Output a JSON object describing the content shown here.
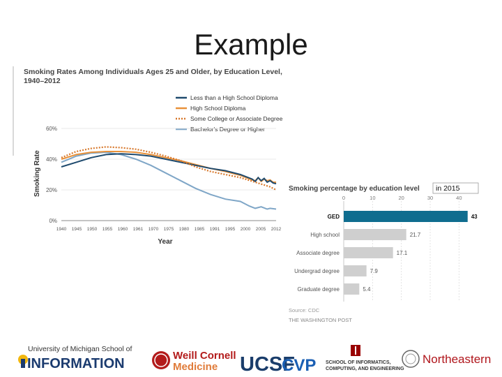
{
  "slide": {
    "title": "Example"
  },
  "colors": {
    "less_hs": "#1e4a6e",
    "hs": "#e8913a",
    "some_college": "#d7772a",
    "bachelors": "#7fa6c7",
    "ged_bar": "#0f6d8f",
    "gray_bar": "#cfcfcf"
  },
  "chart_data": [
    {
      "type": "line",
      "title": "Smoking Rates Among Individuals Ages 25 and Older, by Education Level,",
      "title_line2": "1940–2012",
      "xlabel": "Year",
      "ylabel": "Smoking Rate",
      "ylim": [
        0,
        60
      ],
      "y_ticks": [
        "0%",
        "20%",
        "40%",
        "60%"
      ],
      "x_ticks": [
        "1940",
        "1945",
        "1950",
        "1955",
        "1960",
        "1961",
        "1970",
        "1975",
        "1980",
        "1985",
        "1991",
        "1995",
        "2000",
        "2005",
        "2012"
      ],
      "x_range": [
        1940,
        2012
      ],
      "series": [
        {
          "name": "Less than a High School Diploma",
          "style": "solid",
          "x": [
            1940,
            1945,
            1950,
            1955,
            1960,
            1965,
            1970,
            1975,
            1980,
            1985,
            1990,
            1995,
            2000,
            2004,
            2005,
            2006,
            2007,
            2008,
            2009,
            2010,
            2011,
            2012
          ],
          "y": [
            35,
            38,
            41,
            43,
            43.5,
            43,
            42,
            40,
            38,
            36,
            34,
            32.5,
            30,
            27,
            25.5,
            28,
            26,
            27.5,
            25,
            26,
            24.5,
            24
          ]
        },
        {
          "name": "High School Diploma",
          "style": "solid",
          "x": [
            1940,
            1945,
            1950,
            1955,
            1960,
            1965,
            1970,
            1975,
            1980,
            1985,
            1990,
            1995,
            2000,
            2004,
            2005,
            2006,
            2007,
            2008,
            2009,
            2010,
            2011,
            2012
          ],
          "y": [
            40,
            43,
            44.5,
            45,
            45,
            44.5,
            43,
            41,
            39,
            36.5,
            34,
            32,
            29.5,
            26.5,
            26,
            28,
            25.5,
            27,
            26,
            26.5,
            25,
            25
          ]
        },
        {
          "name": "Some College or Associate Degree",
          "style": "dotted",
          "x": [
            1940,
            1945,
            1950,
            1955,
            1960,
            1965,
            1970,
            1975,
            1980,
            1985,
            1990,
            1995,
            2000,
            2005,
            2010,
            2012
          ],
          "y": [
            41,
            45,
            47,
            48,
            47.5,
            46.5,
            44.5,
            42,
            39,
            35,
            32,
            30,
            28,
            25,
            22,
            20
          ]
        },
        {
          "name": "Bachelor's Degree or Higher",
          "style": "solid",
          "x": [
            1940,
            1945,
            1950,
            1955,
            1960,
            1965,
            1970,
            1975,
            1980,
            1985,
            1990,
            1995,
            2000,
            2003,
            2005,
            2007,
            2009,
            2010,
            2012
          ],
          "y": [
            38,
            42,
            44,
            44.5,
            43,
            40,
            36,
            31,
            26,
            21,
            17,
            14,
            12.5,
            9.5,
            8,
            9,
            7.5,
            8,
            7.5
          ]
        }
      ]
    },
    {
      "type": "bar",
      "orientation": "horizontal",
      "title": "Smoking percentage by education level",
      "title_suffix": "in 2015",
      "categories": [
        "GED",
        "High school",
        "Associate degree",
        "Undergrad degree",
        "Graduate degree"
      ],
      "values": [
        43,
        21.7,
        17.1,
        7.9,
        5.4
      ],
      "value_labels": [
        "43",
        "21.7",
        "17.1",
        "7.9",
        "5.4"
      ],
      "xlim": [
        0,
        45
      ],
      "x_ticks": [
        0,
        10,
        20,
        30,
        40
      ],
      "source": "Source: CDC",
      "publisher": "THE WASHINGTON POST"
    }
  ],
  "logos": {
    "umich_line1": "University of Michigan School of",
    "umich_line2": "INFORMATION",
    "weill_line1": "Weill Cornell",
    "weill_line2": "Medicine",
    "ucsf": "UCSF",
    "cvp": "CVP",
    "iu_line1": "SCHOOL OF INFORMATICS,",
    "iu_line2": "COMPUTING, AND ENGINEERING",
    "northeastern": "Northeastern"
  }
}
